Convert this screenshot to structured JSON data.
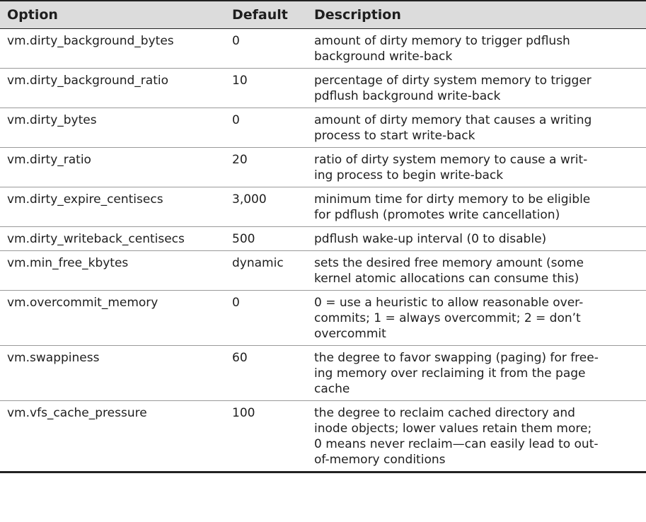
{
  "table": {
    "headers": [
      "Option",
      "Default",
      "Description"
    ],
    "rows": [
      {
        "option": "vm.dirty_background_bytes",
        "default": "0",
        "description": [
          "amount of dirty memory to trigger pdflush",
          "background write-back"
        ]
      },
      {
        "option": "vm.dirty_background_ratio",
        "default": "10",
        "description": [
          "percentage of dirty system memory to trigger",
          "pdflush background write-back"
        ]
      },
      {
        "option": "vm.dirty_bytes",
        "default": "0",
        "description": [
          "amount of dirty memory that causes a writing",
          "process to start write-back"
        ]
      },
      {
        "option": "vm.dirty_ratio",
        "default": "20",
        "description": [
          "ratio of dirty system memory to cause a writ-",
          "ing process to begin write-back"
        ]
      },
      {
        "option": "vm.dirty_expire_centisecs",
        "default": "3,000",
        "description": [
          "minimum time for dirty memory to be eligible",
          "for pdflush (promotes write cancellation)"
        ]
      },
      {
        "option": "vm.dirty_writeback_centisecs",
        "default": "500",
        "description": [
          "pdflush wake-up interval (0 to disable)"
        ]
      },
      {
        "option": "vm.min_free_kbytes",
        "default": "dynamic",
        "description": [
          "sets the desired free memory amount (some",
          "kernel atomic allocations can consume this)"
        ]
      },
      {
        "option": "vm.overcommit_memory",
        "default": "0",
        "description": [
          "0 = use a heuristic to allow reasonable over-",
          "commits; 1 = always overcommit; 2 = don’t",
          "overcommit"
        ]
      },
      {
        "option": "vm.swappiness",
        "default": "60",
        "description": [
          "the degree to favor swapping (paging) for free-",
          "ing memory over reclaiming it from the page",
          "cache"
        ]
      },
      {
        "option": "vm.vfs_cache_pressure",
        "default": "100",
        "description": [
          "the degree to reclaim cached directory and",
          "inode objects; lower values retain them more;",
          "0 means never reclaim—can easily lead to out-",
          "of-memory conditions"
        ]
      }
    ]
  }
}
